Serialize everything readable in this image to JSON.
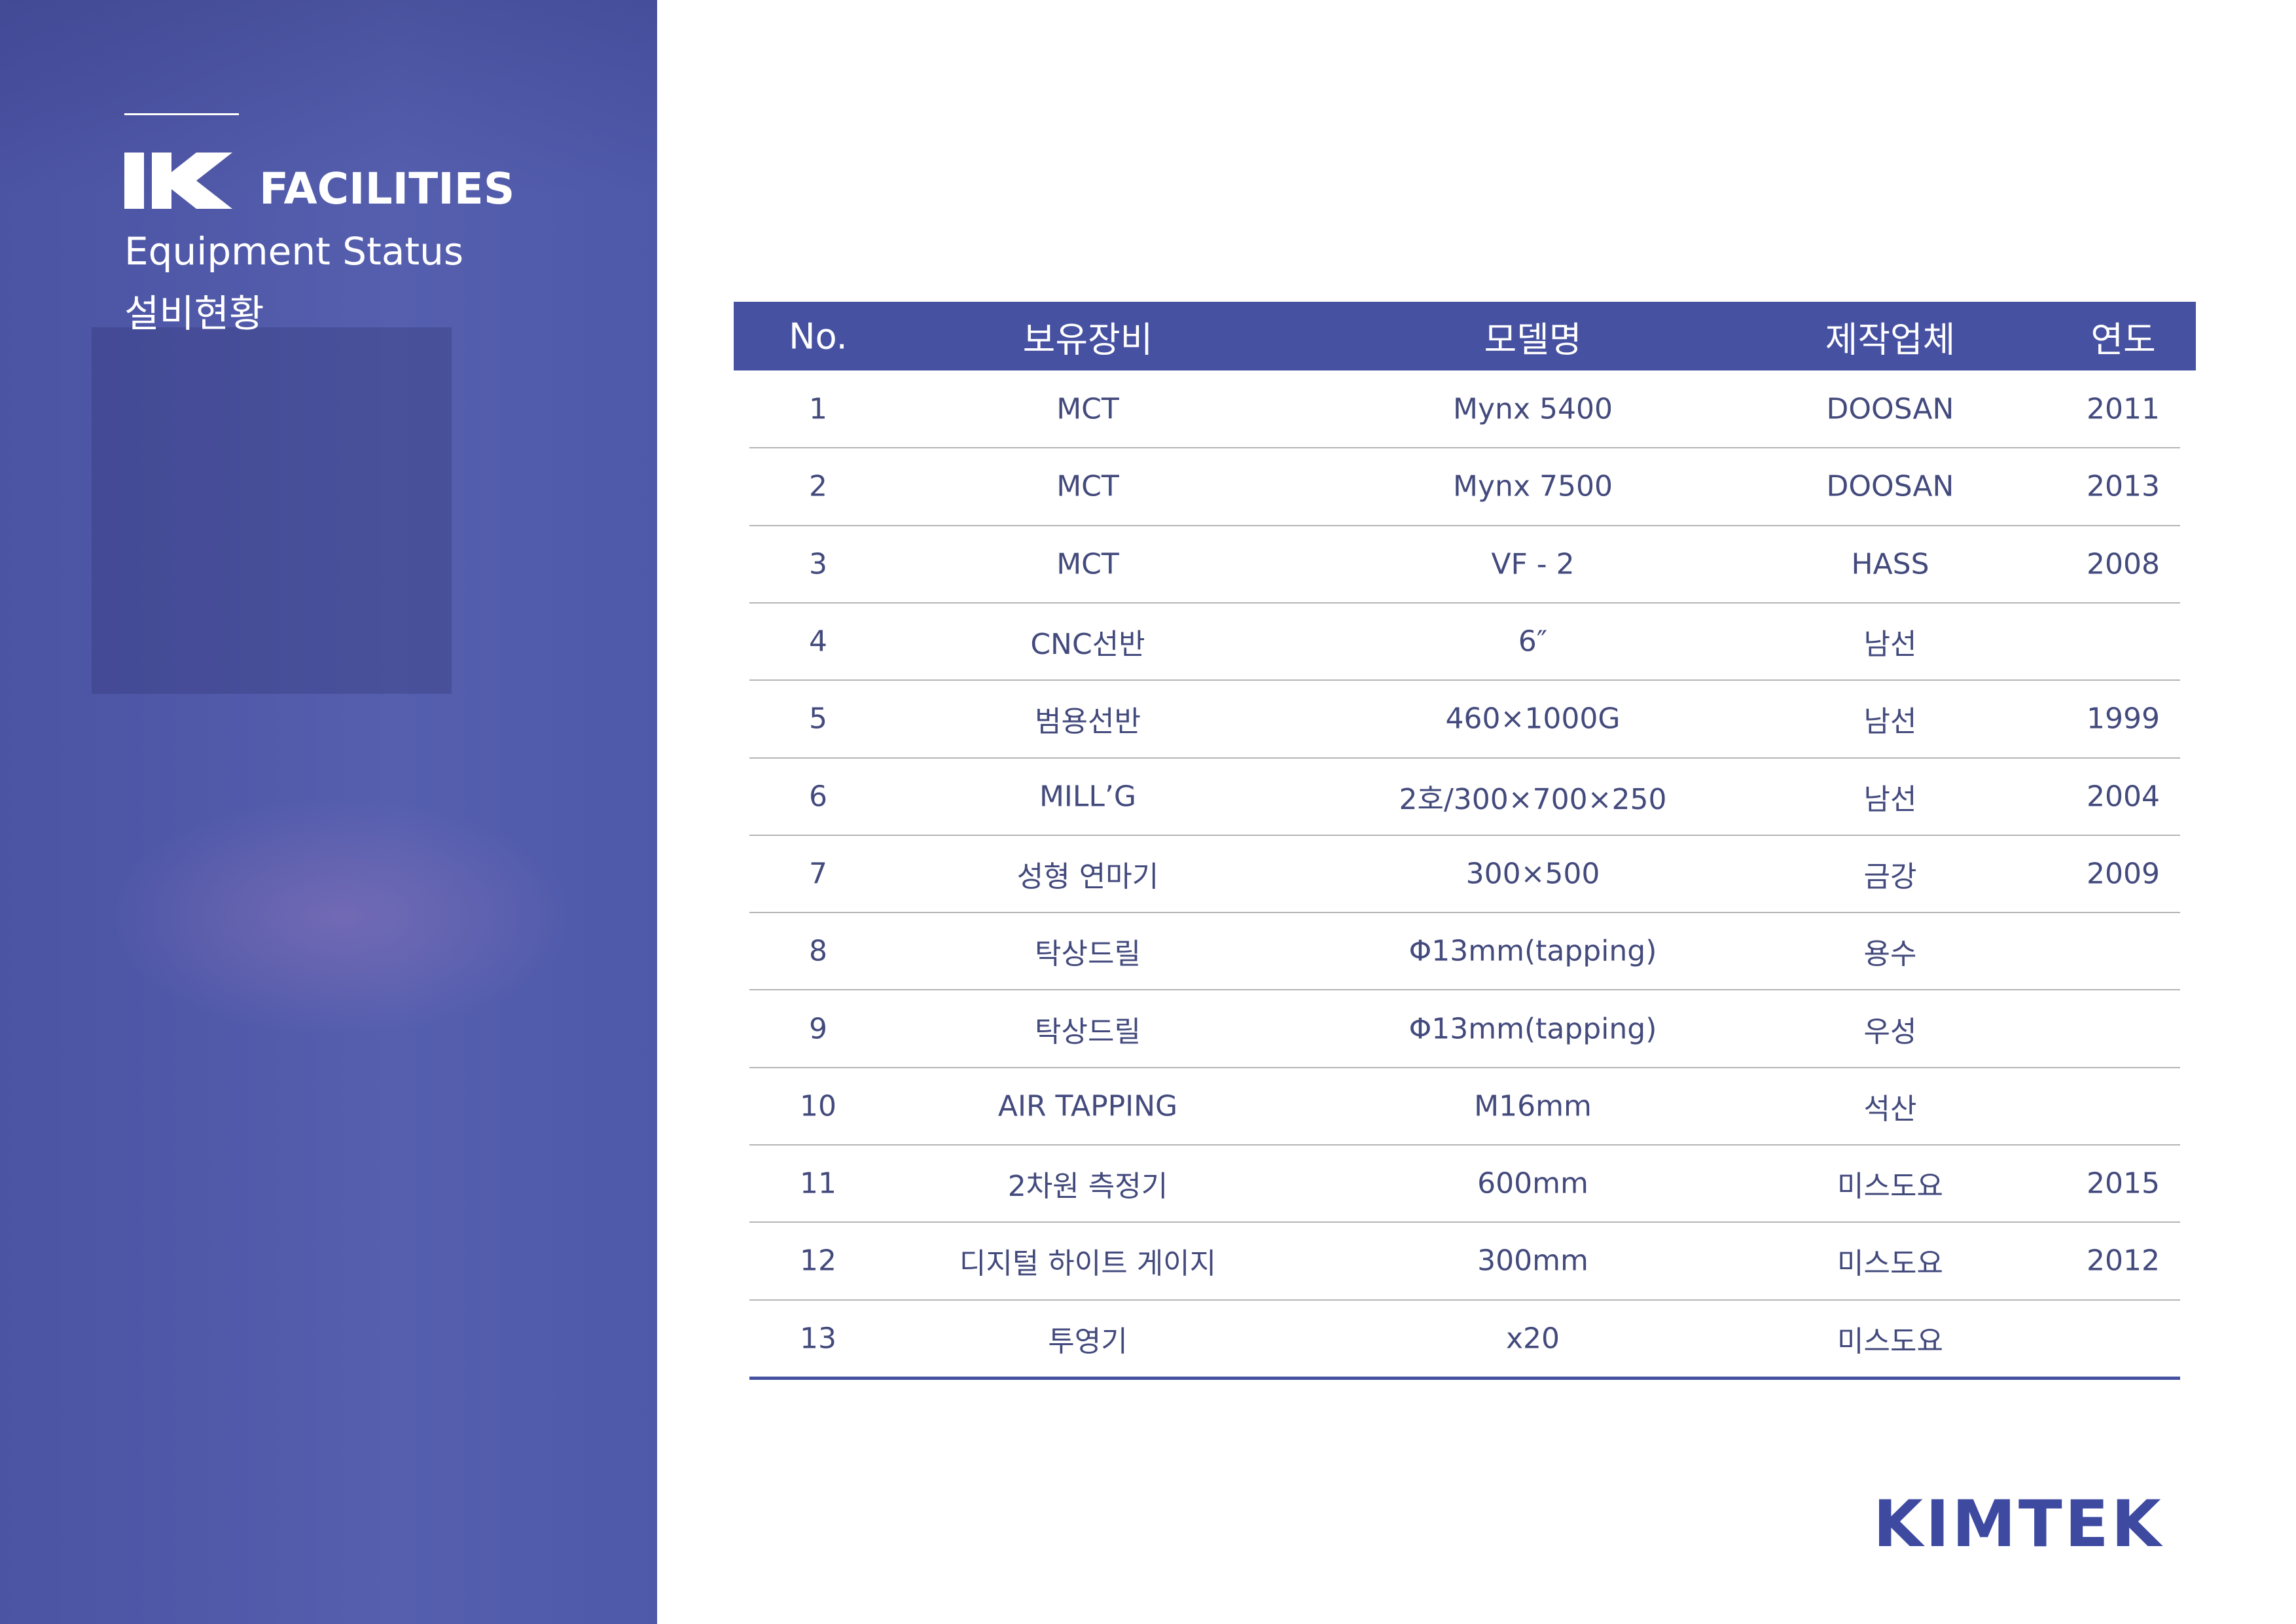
{
  "side": {
    "title": "FACILITIES",
    "subtitle": "Equipment Status",
    "subtitle_ko": "설비현황"
  },
  "table": {
    "header": [
      "No.",
      "보유장비",
      "모델명",
      "제작업체",
      "연도"
    ],
    "rows": [
      [
        "1",
        "MCT",
        "Mynx 5400",
        "DOOSAN",
        "2011"
      ],
      [
        "2",
        "MCT",
        "Mynx 7500",
        "DOOSAN",
        "2013"
      ],
      [
        "3",
        "MCT",
        "VF - 2",
        "HASS",
        "2008"
      ],
      [
        "4",
        "CNC선반",
        "6″",
        "남선",
        null
      ],
      [
        "5",
        "범용선반",
        "460×1000G",
        "남선",
        "1999"
      ],
      [
        "6",
        "MILL’G",
        "2호/300×700×250",
        "남선",
        "2004"
      ],
      [
        "7",
        "성형 연마기",
        "300×500",
        "금강",
        "2009"
      ],
      [
        "8",
        "탁상드릴",
        "Φ13mm(tapping)",
        "용수",
        null
      ],
      [
        "9",
        "탁상드릴",
        "Φ13mm(tapping)",
        "우성",
        null
      ],
      [
        "10",
        "AIR TAPPING",
        "M16mm",
        "석산",
        null
      ],
      [
        "11",
        "2차원 측정기",
        "600mm",
        "미스도요",
        "2015"
      ],
      [
        "12",
        "디지털 하이트 게이지",
        "300mm",
        "미스도요",
        "2012"
      ],
      [
        "13",
        "투영기",
        "x20",
        "미스도요",
        null
      ]
    ]
  },
  "footer": {
    "brand": "KIMTEK"
  }
}
